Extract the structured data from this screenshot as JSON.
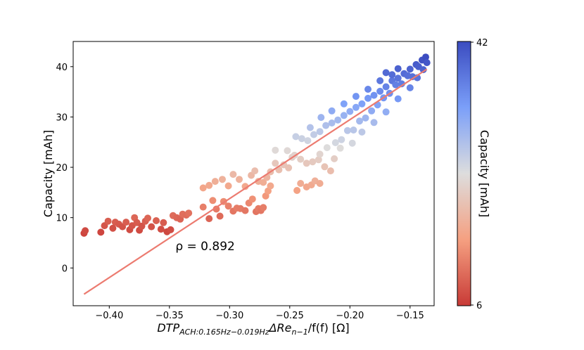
{
  "chart_data": {
    "type": "scatter",
    "title": "",
    "xlabel": "DTP_{ACH:0.165Hz-0.019Hz} ΔRe_{n-1}/f(f) [Ω]",
    "xlabel_parts": {
      "main": "DTP",
      "sub": "ACH:0.165Hz−0.019Hz",
      "mid": "ΔRe",
      "sub2": "n−1",
      "tail": "/f(f) [Ω]"
    },
    "ylabel": "Capacity [mAh]",
    "xlim": [
      -0.43,
      -0.13
    ],
    "ylim": [
      -7.5,
      45
    ],
    "xticks": [
      -0.4,
      -0.35,
      -0.3,
      -0.25,
      -0.2,
      -0.15
    ],
    "xtick_labels": [
      "−0.40",
      "−0.35",
      "−0.30",
      "−0.25",
      "−0.20",
      "−0.15"
    ],
    "yticks": [
      0,
      10,
      20,
      30,
      40
    ],
    "ytick_labels": [
      "0",
      "10",
      "20",
      "30",
      "40"
    ],
    "annotation": "ρ = 0.892",
    "annotation_pos": [
      -0.345,
      3.5
    ],
    "fit_line": {
      "x": [
        -0.421,
        -0.136
      ],
      "y": [
        -5.2,
        39.5
      ],
      "color": "#ec7b70"
    },
    "colorbar": {
      "label": "Capacity [mAh]",
      "min": 6,
      "max": 42,
      "tick_labels": [
        "42",
        "6"
      ],
      "colormap": "coolwarm_r"
    },
    "anchors": [
      [
        -0.421,
        6.9
      ],
      [
        -0.42,
        7.4
      ],
      [
        -0.407,
        7.1
      ],
      [
        -0.404,
        8.4
      ],
      [
        -0.401,
        9.3
      ],
      [
        -0.397,
        7.9
      ],
      [
        -0.395,
        9.1
      ],
      [
        -0.392,
        8.7
      ],
      [
        -0.389,
        8.2
      ],
      [
        -0.386,
        9.1
      ],
      [
        -0.383,
        7.6
      ],
      [
        -0.381,
        8.4
      ],
      [
        -0.379,
        10.0
      ],
      [
        -0.377,
        9.0
      ],
      [
        -0.375,
        7.5
      ],
      [
        -0.373,
        8.3
      ],
      [
        -0.37,
        9.3
      ],
      [
        -0.368,
        9.9
      ],
      [
        -0.365,
        8.2
      ],
      [
        -0.361,
        9.4
      ],
      [
        -0.357,
        7.7
      ],
      [
        -0.355,
        9.0
      ],
      [
        -0.352,
        7.2
      ],
      [
        -0.349,
        7.6
      ],
      [
        -0.347,
        10.4
      ],
      [
        -0.344,
        10.0
      ],
      [
        -0.341,
        9.7
      ],
      [
        -0.339,
        10.7
      ],
      [
        -0.336,
        10.5
      ],
      [
        -0.334,
        10.9
      ],
      [
        -0.322,
        12.1
      ],
      [
        -0.317,
        9.8
      ],
      [
        -0.314,
        13.4
      ],
      [
        -0.311,
        11.7
      ],
      [
        -0.308,
        10.3
      ],
      [
        -0.305,
        13.2
      ],
      [
        -0.301,
        12.3
      ],
      [
        -0.297,
        11.3
      ],
      [
        -0.294,
        11.9
      ],
      [
        -0.291,
        11.8
      ],
      [
        -0.287,
        11.4
      ],
      [
        -0.284,
        12.9
      ],
      [
        -0.281,
        13.7
      ],
      [
        -0.278,
        11.2
      ],
      [
        -0.276,
        11.8
      ],
      [
        -0.274,
        11.4
      ],
      [
        -0.272,
        12.0
      ],
      [
        -0.27,
        14.3
      ],
      [
        -0.268,
        15.3
      ],
      [
        -0.266,
        16.3
      ],
      [
        -0.322,
        15.9
      ],
      [
        -0.317,
        16.4
      ],
      [
        -0.312,
        17.2
      ],
      [
        -0.306,
        17.6
      ],
      [
        -0.301,
        16.3
      ],
      [
        -0.297,
        18.6
      ],
      [
        -0.292,
        17.6
      ],
      [
        -0.287,
        16.2
      ],
      [
        -0.282,
        18.4
      ],
      [
        -0.279,
        19.3
      ],
      [
        -0.276,
        17.2
      ],
      [
        -0.272,
        17.0
      ],
      [
        -0.269,
        18.0
      ],
      [
        -0.266,
        19.1
      ],
      [
        -0.262,
        20.8
      ],
      [
        -0.259,
        19.5
      ],
      [
        -0.255,
        20.5
      ],
      [
        -0.251,
        19.9
      ],
      [
        -0.248,
        22.0
      ],
      [
        -0.244,
        15.4
      ],
      [
        -0.241,
        16.8
      ],
      [
        -0.236,
        16.1
      ],
      [
        -0.232,
        16.5
      ],
      [
        -0.229,
        17.3
      ],
      [
        -0.225,
        16.8
      ],
      [
        -0.252,
        23.3
      ],
      [
        -0.246,
        22.4
      ],
      [
        -0.241,
        21.6
      ],
      [
        -0.236,
        20.8
      ],
      [
        -0.231,
        21.1
      ],
      [
        -0.226,
        21.5
      ],
      [
        -0.221,
        20.1
      ],
      [
        -0.216,
        19.3
      ],
      [
        -0.262,
        23.4
      ],
      [
        -0.245,
        26.1
      ],
      [
        -0.24,
        25.7
      ],
      [
        -0.235,
        25.3
      ],
      [
        -0.23,
        26.5
      ],
      [
        -0.225,
        27.1
      ],
      [
        -0.22,
        28.3
      ],
      [
        -0.215,
        28.8
      ],
      [
        -0.21,
        29.4
      ],
      [
        -0.205,
        30.3
      ],
      [
        -0.2,
        31.1
      ],
      [
        -0.195,
        31.9
      ],
      [
        -0.19,
        32.6
      ],
      [
        -0.185,
        33.7
      ],
      [
        -0.18,
        34.3
      ],
      [
        -0.175,
        35.1
      ],
      [
        -0.17,
        36.0
      ],
      [
        -0.165,
        37.2
      ],
      [
        -0.16,
        37.7
      ],
      [
        -0.155,
        38.6
      ],
      [
        -0.15,
        39.5
      ],
      [
        -0.145,
        40.4
      ],
      [
        -0.14,
        41.3
      ],
      [
        -0.137,
        41.9
      ],
      [
        -0.136,
        40.8
      ],
      [
        -0.143,
        40.0
      ],
      [
        -0.152,
        38.2
      ],
      [
        -0.162,
        36.4
      ],
      [
        -0.172,
        33.8
      ],
      [
        -0.182,
        31.2
      ],
      [
        -0.192,
        29.2
      ],
      [
        -0.202,
        27.3
      ],
      [
        -0.212,
        24.9
      ],
      [
        -0.219,
        23.9
      ],
      [
        -0.225,
        22.6
      ],
      [
        -0.207,
        25.5
      ],
      [
        -0.197,
        27.4
      ],
      [
        -0.187,
        29.8
      ],
      [
        -0.177,
        32.4
      ],
      [
        -0.167,
        34.7
      ],
      [
        -0.157,
        36.6
      ],
      [
        -0.148,
        38.0
      ],
      [
        -0.215,
        31.2
      ],
      [
        -0.205,
        32.6
      ],
      [
        -0.195,
        34.1
      ],
      [
        -0.185,
        35.5
      ],
      [
        -0.175,
        37.2
      ],
      [
        -0.165,
        38.4
      ],
      [
        -0.16,
        39.6
      ],
      [
        -0.17,
        38.8
      ],
      [
        -0.224,
        29.9
      ],
      [
        -0.233,
        27.9
      ],
      [
        -0.19,
        27.0
      ],
      [
        -0.18,
        28.9
      ],
      [
        -0.17,
        31.0
      ],
      [
        -0.16,
        33.6
      ],
      [
        -0.15,
        35.8
      ],
      [
        -0.144,
        37.8
      ],
      [
        -0.139,
        39.4
      ],
      [
        -0.208,
        23.8
      ],
      [
        -0.213,
        21.7
      ],
      [
        -0.198,
        24.8
      ]
    ]
  }
}
